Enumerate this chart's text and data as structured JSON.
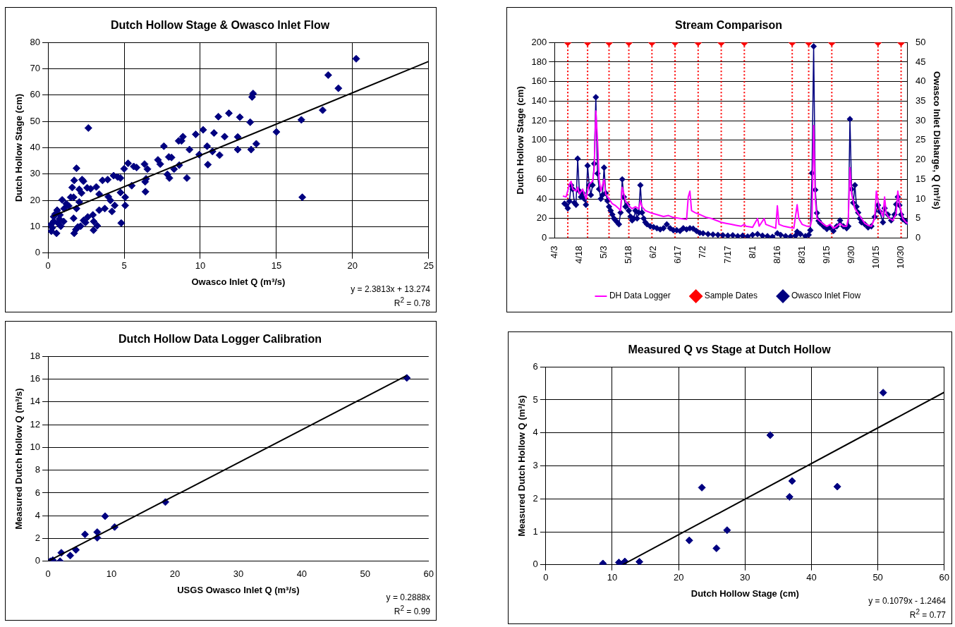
{
  "chart_data": [
    {
      "type": "scatter",
      "title": "Dutch Hollow Stage & Owasco Inlet Flow",
      "xlabel": "Owasco Inlet Q (m³/s)",
      "ylabel": "Dutch Hollow Stage (cm)",
      "xlim": [
        0,
        25
      ],
      "xticks": [
        0,
        5,
        10,
        15,
        20,
        25
      ],
      "ylim": [
        0,
        80
      ],
      "yticks": [
        0,
        10,
        20,
        30,
        40,
        50,
        60,
        70,
        80
      ],
      "grid": true,
      "annotations": [
        "y = 2.3813x + 13.274",
        "R$^{2}$ = 0.78"
      ],
      "series": [
        {
          "color": "#000080",
          "marker": "diamond",
          "x": [
            20.24,
            18.4,
            19.07,
            18.04,
            16.64,
            16.7,
            15.0,
            13.47,
            13.4,
            13.28,
            13.68,
            13.34,
            12.46,
            12.46,
            12.6,
            11.88,
            11.19,
            11.6,
            11.27,
            10.9,
            10.8,
            10.45,
            10.5,
            10.19,
            9.93,
            9.7,
            9.29,
            9.12,
            8.86,
            8.77,
            8.58,
            8.62,
            8.28,
            8.11,
            7.93,
            7.97,
            7.84,
            7.61,
            7.37,
            7.22,
            6.53,
            6.44,
            6.34,
            6.38,
            6.4,
            5.82,
            5.63,
            5.5,
            5.26,
            5.07,
            5.07,
            5.0,
            4.81,
            4.76,
            4.76,
            4.57,
            4.38,
            4.31,
            4.2,
            4.1,
            3.96,
            3.92,
            3.58,
            3.36,
            3.73,
            3.36,
            3.23,
            3.17,
            3.0,
            2.99,
            2.95,
            2.8,
            2.65,
            2.61,
            2.57,
            2.46,
            2.33,
            2.33,
            2.2,
            2.14,
            2.24,
            2.05,
            1.96,
            1.87,
            1.83,
            1.72,
            1.68,
            1.72,
            1.59,
            1.49,
            1.36,
            1.21,
            1.06,
            0.93,
            1.03,
            0.84,
            0.75,
            0.56,
            0.6,
            0.47,
            0.37,
            0.28,
            0.19,
            0.22,
            0.65,
            0.78,
            0.37,
            2.05,
            1.87,
            1.68
          ],
          "values": [
            73.8,
            67.6,
            62.6,
            54.3,
            50.6,
            21.2,
            46,
            60.6,
            59.3,
            49.7,
            41.5,
            39.3,
            44.1,
            39.3,
            51.6,
            53.1,
            51.8,
            44.2,
            37.2,
            45.6,
            38.6,
            40.6,
            33.6,
            46.8,
            37.4,
            45.1,
            39.3,
            28.5,
            44.2,
            42.6,
            42.6,
            33.4,
            31.9,
            36.3,
            36.5,
            28.5,
            29.9,
            40.6,
            33.8,
            35.4,
            31.9,
            28.2,
            33.8,
            27.1,
            23.3,
            32.5,
            32.9,
            25.6,
            34.1,
            18.1,
            21.2,
            32,
            11.4,
            23,
            28.5,
            28.9,
            18.1,
            29.4,
            15.8,
            20,
            21.4,
            27.9,
            27.6,
            22.4,
            16.9,
            16.3,
            10.4,
            25.1,
            12,
            8.7,
            14.5,
            24.4,
            47.5,
            13.7,
            24.8,
            11.6,
            12.4,
            27.3,
            22.8,
            10.2,
            27.9,
            24.2,
            9.9,
            32.2,
            8.9,
            7.5,
            13.2,
            27.6,
            24.9,
            21.2,
            17.9,
            18.7,
            16.9,
            20.2,
            12,
            10.2,
            12.9,
            7.5,
            16.3,
            14.8,
            12,
            9.6,
            10.8,
            8.3,
            11.4,
            14.5,
            13.8,
            19.4,
            16.9,
            21.2
          ]
        },
        {
          "type": "line",
          "color": "#000000",
          "marker": "none",
          "x": [
            0.3,
            25
          ],
          "values": [
            14.0,
            72.8
          ]
        }
      ]
    },
    {
      "type": "line",
      "title": "Stream Comparison",
      "ylabel": "Dutch Hollow Stage (cm)",
      "y2label": "Owasco Inlet Disharge, Q (m³/s)",
      "xlim": [
        "--04-03",
        "--11-03"
      ],
      "xticks": [
        {
          "value": "--04-03",
          "label": "4/3"
        },
        {
          "value": "--04-18",
          "label": "4/18"
        },
        {
          "value": "--05-03",
          "label": "5/3"
        },
        {
          "value": "--05-18",
          "label": "5/18"
        },
        {
          "value": "--06-02",
          "label": "6/2"
        },
        {
          "value": "--06-17",
          "label": "6/17"
        },
        {
          "value": "--07-02",
          "label": "7/2"
        },
        {
          "value": "--07-17",
          "label": "7/17"
        },
        {
          "value": "--08-01",
          "label": "8/1"
        },
        {
          "value": "--08-16",
          "label": "8/16"
        },
        {
          "value": "--08-31",
          "label": "8/31"
        },
        {
          "value": "--09-15",
          "label": "9/15"
        },
        {
          "value": "--09-30",
          "label": "9/30"
        },
        {
          "value": "--10-15",
          "label": "10/15"
        },
        {
          "value": "--10-30",
          "label": "10/30"
        }
      ],
      "ylim": [
        0,
        200
      ],
      "yticks": [
        0,
        20,
        40,
        60,
        80,
        100,
        120,
        140,
        160,
        180,
        200
      ],
      "y2lim": [
        0,
        50
      ],
      "y2ticks": [
        0,
        5,
        10,
        15,
        20,
        25,
        30,
        35,
        40,
        45,
        50
      ],
      "grid": "y",
      "legend": "bottom",
      "ref_lines": [
        {
          "axis": "x",
          "value": "--04-11",
          "color": "#ff0000",
          "line_style": "dotted"
        },
        {
          "axis": "x",
          "value": "--04-23",
          "color": "#ff0000",
          "line_style": "dotted"
        },
        {
          "axis": "x",
          "value": "--05-06",
          "color": "#ff0000",
          "line_style": "dotted"
        },
        {
          "axis": "x",
          "value": "--05-18",
          "color": "#ff0000",
          "line_style": "dotted"
        },
        {
          "axis": "x",
          "value": "--06-01",
          "color": "#ff0000",
          "line_style": "dotted"
        },
        {
          "axis": "x",
          "value": "--06-15",
          "color": "#ff0000",
          "line_style": "dotted"
        },
        {
          "axis": "x",
          "value": "--06-29",
          "color": "#ff0000",
          "line_style": "dotted"
        },
        {
          "axis": "x",
          "value": "--07-13",
          "color": "#ff0000",
          "line_style": "dotted"
        },
        {
          "axis": "x",
          "value": "--07-27",
          "color": "#ff0000",
          "line_style": "dotted"
        },
        {
          "axis": "x",
          "value": "--08-25",
          "color": "#ff0000",
          "line_style": "dotted"
        },
        {
          "axis": "x",
          "value": "--09-04",
          "color": "#ff0000",
          "line_style": "dotted"
        },
        {
          "axis": "x",
          "value": "--09-18",
          "color": "#ff0000",
          "line_style": "dotted"
        },
        {
          "axis": "x",
          "value": "--10-16",
          "color": "#ff0000",
          "line_style": "dotted"
        },
        {
          "axis": "x",
          "value": "--10-30",
          "color": "#ff0000",
          "line_style": "dotted"
        }
      ],
      "series": [
        {
          "name": "DH Data Logger",
          "color": "#ff00ff",
          "marker": "none",
          "x": [
            "--04-08",
            "--04-10",
            "--04-12",
            "--04-13",
            "--04-14",
            "--04-16",
            "--04-17",
            "--04-18",
            "--04-20",
            "--04-22",
            "--04-24",
            "--04-26",
            "--04-27",
            "--04-28",
            "--04-29",
            "--04-30",
            "--05-01",
            "--05-03",
            "--05-04",
            "--05-06",
            "--05-08",
            "--05-10",
            "--05-12",
            "--05-13",
            "--05-14",
            "--05-15",
            "--05-16",
            "--05-18",
            "--05-20",
            "--05-22",
            "--05-24",
            "--05-25",
            "--05-26",
            "--05-28",
            "--05-31",
            "--06-04",
            "--06-08",
            "--06-11",
            "--06-14",
            "--06-18",
            "--06-22",
            "--06-23",
            "--06-24",
            "--06-25",
            "--06-27",
            "--06-30",
            "--07-04",
            "--07-07",
            "--07-10",
            "--07-13",
            "--07-16",
            "--07-19",
            "--07-22",
            "--07-25",
            "--07-27",
            "--07-28",
            "--08-01",
            "--08-04",
            "--08-05",
            "--08-08",
            "--08-09",
            "--08-12",
            "--08-15",
            "--08-16",
            "--08-17",
            "--08-20",
            "--08-23",
            "--08-26",
            "--08-28",
            "--08-29",
            "--08-31",
            "--09-03",
            "--09-05",
            "--09-06",
            "--09-07",
            "--09-08",
            "--09-09",
            "--09-11",
            "--09-13",
            "--09-15",
            "--09-17",
            "--09-19",
            "--09-21",
            "--09-23",
            "--09-25",
            "--09-27",
            "--09-28",
            "--09-29",
            "--09-30",
            "--10-01",
            "--10-02",
            "--10-04",
            "--10-06",
            "--10-08",
            "--10-10",
            "--10-12",
            "--10-14",
            "--10-15",
            "--10-16",
            "--10-17",
            "--10-19",
            "--10-20",
            "--10-21",
            "--10-23",
            "--10-25",
            "--10-27",
            "--10-28",
            "--10-29",
            "--10-31",
            "--11-02",
            "--11-03"
          ],
          "values": [
            43,
            42,
            55,
            58,
            50,
            48,
            52,
            45,
            50,
            40,
            55,
            58,
            70,
            130,
            100,
            60,
            48,
            60,
            45,
            40,
            35,
            33,
            30,
            28,
            52,
            45,
            38,
            33,
            30,
            32,
            30,
            38,
            32,
            28,
            26,
            24,
            22,
            23,
            21,
            20,
            19,
            42,
            48,
            28,
            26,
            24,
            21,
            20,
            18,
            16,
            15,
            14,
            13,
            12,
            14,
            12,
            11,
            20,
            12,
            20,
            14,
            12,
            10,
            33,
            14,
            12,
            11,
            10,
            34,
            20,
            14,
            12,
            12,
            20,
            115,
            40,
            20,
            17,
            14,
            12,
            14,
            10,
            12,
            15,
            12,
            12,
            20,
            72,
            45,
            38,
            30,
            25,
            20,
            15,
            13,
            12,
            20,
            48,
            38,
            30,
            22,
            42,
            25,
            20,
            18,
            25,
            48,
            35,
            20,
            16,
            15
          ]
        },
        {
          "name": "Sample Dates",
          "type": "scatter",
          "color": "#ff0000",
          "marker": "diamond",
          "x": [
            "--04-11",
            "--04-23",
            "--05-06",
            "--05-18",
            "--06-01",
            "--06-15",
            "--06-29",
            "--07-13",
            "--07-27",
            "--08-25",
            "--09-04",
            "--09-18",
            "--10-16",
            "--10-30"
          ],
          "values": [
            200,
            200,
            200,
            200,
            200,
            200,
            200,
            200,
            200,
            200,
            200,
            200,
            200,
            200
          ]
        },
        {
          "name": "Owasco Inlet Flow",
          "axis": "y2",
          "color": "#000080",
          "marker": "diamond",
          "x": [
            "--04-09",
            "--04-10",
            "--04-11",
            "--04-12",
            "--04-13",
            "--04-14",
            "--04-15",
            "--04-16",
            "--04-17",
            "--04-18",
            "--04-19",
            "--04-20",
            "--04-21",
            "--04-22",
            "--04-23",
            "--04-24",
            "--04-25",
            "--04-26",
            "--04-27",
            "--04-28",
            "--04-29",
            "--04-30",
            "--05-01",
            "--05-02",
            "--05-03",
            "--05-04",
            "--05-05",
            "--05-06",
            "--05-07",
            "--05-08",
            "--05-09",
            "--05-10",
            "--05-11",
            "--05-12",
            "--05-13",
            "--05-14",
            "--05-15",
            "--05-16",
            "--05-17",
            "--05-18",
            "--05-19",
            "--05-20",
            "--05-21",
            "--05-22",
            "--05-23",
            "--05-24",
            "--05-25",
            "--05-26",
            "--05-27",
            "--05-28",
            "--05-29",
            "--05-31",
            "--06-02",
            "--06-04",
            "--06-06",
            "--06-08",
            "--06-10",
            "--06-12",
            "--06-14",
            "--06-16",
            "--06-18",
            "--06-20",
            "--06-22",
            "--06-24",
            "--06-26",
            "--06-28",
            "--06-30",
            "--07-02",
            "--07-05",
            "--07-08",
            "--07-11",
            "--07-14",
            "--07-17",
            "--07-20",
            "--07-23",
            "--07-26",
            "--07-29",
            "--08-01",
            "--08-04",
            "--08-07",
            "--08-10",
            "--08-13",
            "--08-16",
            "--08-18",
            "--08-21",
            "--08-24",
            "--08-27",
            "--08-28",
            "--08-30",
            "--09-02",
            "--09-04",
            "--09-05",
            "--09-06",
            "--09-07",
            "--09-08",
            "--09-09",
            "--09-10",
            "--09-11",
            "--09-13",
            "--09-15",
            "--09-17",
            "--09-19",
            "--09-21",
            "--09-23",
            "--09-25",
            "--09-27",
            "--09-28",
            "--09-29",
            "--09-30",
            "--10-01",
            "--10-02",
            "--10-03",
            "--10-04",
            "--10-05",
            "--10-06",
            "--10-08",
            "--10-10",
            "--10-12",
            "--10-14",
            "--10-16",
            "--10-17",
            "--10-19",
            "--10-20",
            "--10-22",
            "--10-24",
            "--10-26",
            "--10-27",
            "--10-28",
            "--10-29",
            "--10-30",
            "--10-31",
            "--11-02",
            "--11-03"
          ],
          "values": [
            8.8,
            8.5,
            7.6,
            9.4,
            13.5,
            12.5,
            9,
            8.5,
            20.3,
            12,
            10.5,
            11.5,
            10,
            8.5,
            18.5,
            13.5,
            11,
            13.5,
            19,
            36,
            16.5,
            12.5,
            10,
            11,
            18,
            11.5,
            9.5,
            8,
            7,
            6,
            5,
            4.5,
            4,
            3.5,
            6.5,
            15,
            10.5,
            8,
            8.5,
            7,
            5.5,
            4.5,
            5,
            7,
            5,
            6.5,
            13.5,
            6.5,
            5,
            4,
            3.5,
            3,
            2.8,
            2.5,
            2.2,
            2.5,
            3.5,
            2.5,
            2,
            2,
            1.8,
            2.5,
            2.2,
            2.5,
            2.4,
            1.8,
            1.3,
            1.2,
            1,
            0.9,
            0.8,
            0.7,
            0.6,
            0.7,
            0.5,
            0.6,
            0.4,
            0.8,
            1,
            0.6,
            0.5,
            0.3,
            1.2,
            0.8,
            0.5,
            0.4,
            0.6,
            1.6,
            1,
            0.5,
            0.8,
            2,
            16.6,
            49,
            12.3,
            6.4,
            4.4,
            3.8,
            3,
            2.3,
            2.7,
            1.8,
            3,
            4.5,
            3,
            2.5,
            3,
            30.4,
            12.5,
            9,
            13.5,
            8,
            6.5,
            5,
            4,
            3.5,
            2.7,
            3,
            5.4,
            8.4,
            6.8,
            4,
            7.6,
            6,
            4.5,
            6,
            8.6,
            10.5,
            8.4,
            6,
            4.8,
            4.2,
            4
          ]
        }
      ]
    },
    {
      "type": "scatter",
      "title": "Dutch Hollow Data Logger Calibration",
      "xlabel": "USGS Owasco Inlet Q (m³/s)",
      "ylabel": "Measured Dutch Hollow Q (m³/s)",
      "xlim": [
        0,
        60
      ],
      "xticks": [
        0,
        10,
        20,
        30,
        40,
        50,
        60
      ],
      "ylim": [
        0,
        18
      ],
      "yticks": [
        0,
        2,
        4,
        6,
        8,
        10,
        12,
        14,
        16,
        18
      ],
      "grid": "y",
      "annotations": [
        "y = 0.2888x",
        "R$^{2}$ = 0.99"
      ],
      "series": [
        {
          "color": "#000080",
          "marker": "diamond",
          "x": [
            0.36,
            0.76,
            1.9,
            2.1,
            3.5,
            4.4,
            5.83,
            7.76,
            7.76,
            9.0,
            10.5,
            18.5,
            56.55
          ],
          "values": [
            0,
            0.1,
            0,
            0.75,
            0.5,
            1.0,
            2.36,
            2.56,
            2.07,
            3.96,
            3.01,
            5.2,
            16.1
          ]
        },
        {
          "type": "line",
          "color": "#000000",
          "marker": "none",
          "x": [
            0,
            56.5
          ],
          "values": [
            0,
            16.3
          ]
        }
      ]
    },
    {
      "type": "scatter",
      "title": "Measured Q vs Stage at Dutch Hollow",
      "xlabel": "Dutch Hollow Stage (cm)",
      "ylabel": "Measured Dutch Hollow Q (m³/s)",
      "xlim": [
        0,
        60
      ],
      "xticks": [
        0,
        10,
        20,
        30,
        40,
        50,
        60
      ],
      "ylim": [
        0,
        6
      ],
      "yticks": [
        0,
        1,
        2,
        3,
        4,
        5,
        6
      ],
      "grid": true,
      "annotations": [
        "y = 0.1079x - 1.2464",
        "R$^{2}$ = 0.77"
      ],
      "series": [
        {
          "color": "#000080",
          "marker": "diamond",
          "x": [
            8.6,
            11.0,
            11.6,
            11.9,
            14.1,
            21.6,
            23.5,
            25.7,
            27.3,
            33.8,
            36.7,
            37.1,
            43.9,
            50.8
          ],
          "values": [
            0.04,
            0.07,
            0.02,
            0.1,
            0.09,
            0.74,
            2.34,
            0.5,
            1.05,
            3.93,
            2.06,
            2.54,
            2.37,
            5.22
          ]
        },
        {
          "type": "line",
          "color": "#000000",
          "marker": "none",
          "x": [
            11.55,
            60
          ],
          "values": [
            0,
            5.23
          ]
        }
      ]
    }
  ]
}
